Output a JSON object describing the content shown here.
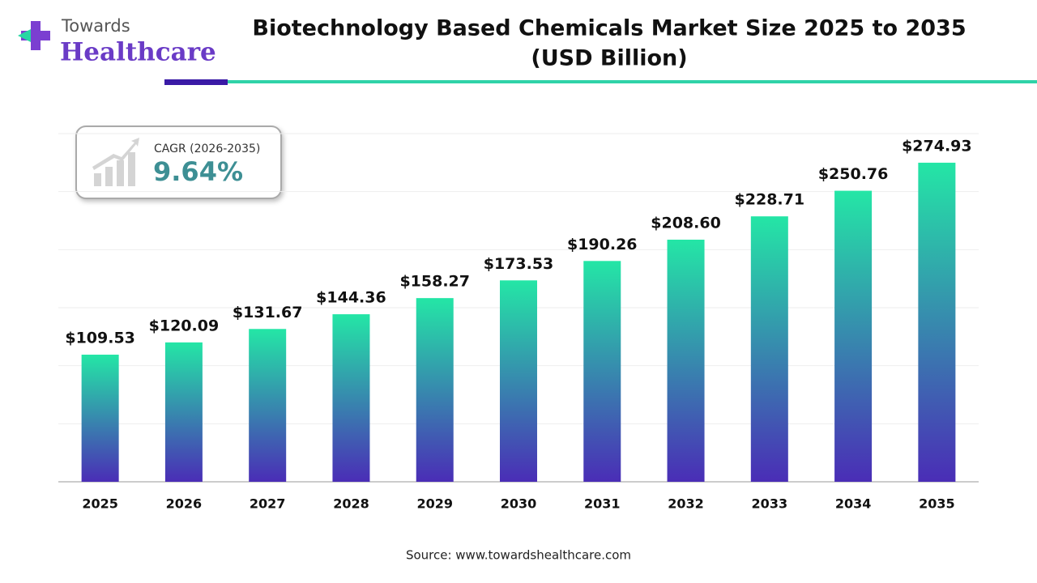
{
  "logo": {
    "top": "Towards",
    "bottom": "Healthcare"
  },
  "cagr": {
    "label": "CAGR (2026-2035)",
    "value": "9.64%"
  },
  "source": "Source: www.towardshealthcare.com",
  "chart_data": {
    "type": "bar",
    "title": "Biotechnology Based Chemicals Market Size 2025 to 2035",
    "subtitle": "(USD Billion)",
    "categories": [
      "2025",
      "2026",
      "2027",
      "2028",
      "2029",
      "2030",
      "2031",
      "2032",
      "2033",
      "2034",
      "2035"
    ],
    "values": [
      109.53,
      120.09,
      131.67,
      144.36,
      158.27,
      173.53,
      190.26,
      208.6,
      228.71,
      250.76,
      274.93
    ],
    "value_labels": [
      "$109.53",
      "$120.09",
      "$131.67",
      "$144.36",
      "$158.27",
      "$173.53",
      "$190.26",
      "$208.60",
      "$228.71",
      "$250.76",
      "$274.93"
    ],
    "color": [
      "#24e6a6",
      "#4a2db6"
    ],
    "ylim": [
      0,
      300
    ],
    "yticks": [
      0,
      50,
      100,
      150,
      200,
      250,
      300
    ],
    "grid": true
  }
}
